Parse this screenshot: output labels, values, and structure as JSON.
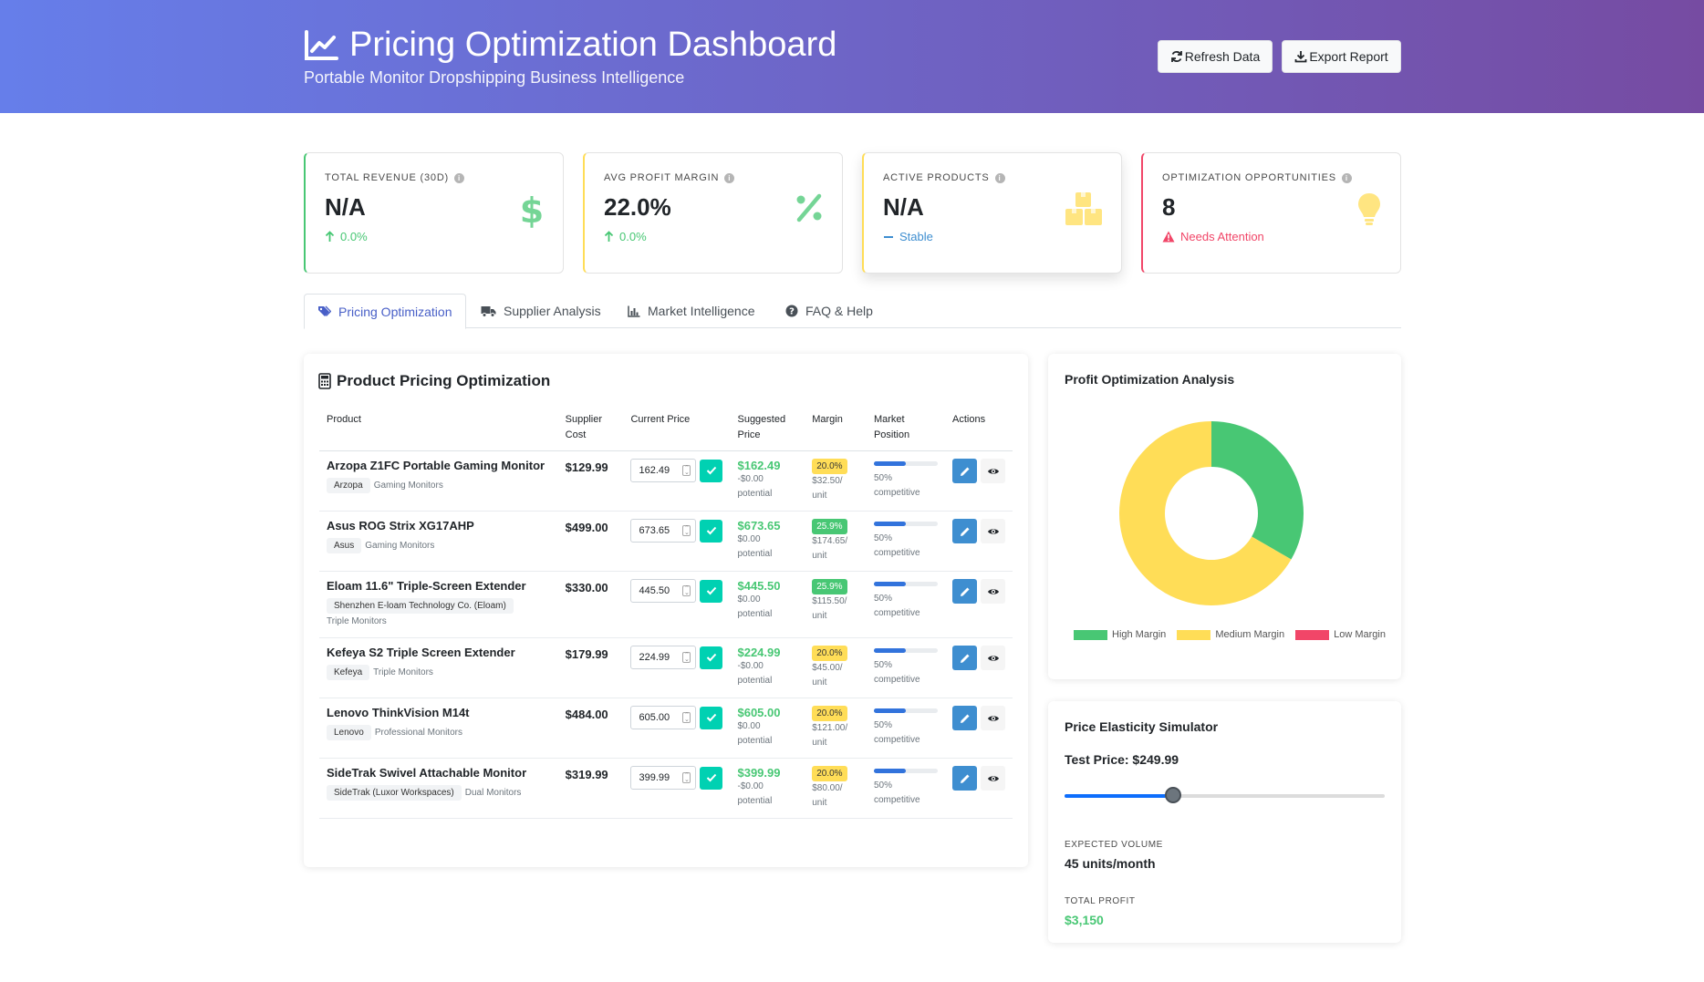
{
  "header": {
    "title": "Pricing Optimization Dashboard",
    "subtitle": "Portable Monitor Dropshipping Business Intelligence",
    "refresh_label": "Refresh Data",
    "export_label": "Export Report"
  },
  "kpis": [
    {
      "label": "TOTAL REVENUE (30D)",
      "value": "N/A",
      "trend": "0.0%",
      "trend_color": "#48c774",
      "accent": "#48c774",
      "icon": "dollar-icon"
    },
    {
      "label": "AVG PROFIT MARGIN",
      "value": "22.0%",
      "trend": "0.0%",
      "trend_color": "#48c774",
      "accent": "#ffdd57",
      "icon": "percent-icon"
    },
    {
      "label": "ACTIVE PRODUCTS",
      "value": "N/A",
      "trend": "Stable",
      "trend_color": "#3e8ed0",
      "accent": "#ffdd57",
      "icon": "boxes-icon"
    },
    {
      "label": "OPTIMIZATION OPPORTUNITIES",
      "value": "8",
      "trend": "Needs Attention",
      "trend_color": "#f14668",
      "accent": "#f14668",
      "icon": "lightbulb-icon"
    }
  ],
  "tabs": [
    {
      "label": "Pricing Optimization",
      "icon": "tags-icon",
      "active": true
    },
    {
      "label": "Supplier Analysis",
      "icon": "truck-icon",
      "active": false
    },
    {
      "label": "Market Intelligence",
      "icon": "chart-bar-icon",
      "active": false
    },
    {
      "label": "FAQ & Help",
      "icon": "question-circle-icon",
      "active": false
    }
  ],
  "table": {
    "title": "Product Pricing Optimization",
    "headers": {
      "product": "Product",
      "supplier_cost_1": "Supplier",
      "supplier_cost_2": "Cost",
      "current_price": "Current Price",
      "suggested_1": "Suggested",
      "suggested_2": "Price",
      "margin": "Margin",
      "market_1": "Market",
      "market_2": "Position",
      "actions": "Actions"
    },
    "rows": [
      {
        "name": "Arzopa Z1FC Portable Gaming Monitor",
        "brand": "Arzopa",
        "category": "Gaming Monitors",
        "cost": "$129.99",
        "current": "162.49",
        "suggested": "$162.49",
        "delta": "-$0.00",
        "potential": "potential",
        "margin": "20.0%",
        "margin_level": "medium",
        "per_unit": "$32.50/",
        "unit": "unit",
        "position": "50%",
        "position_label": "competitive",
        "position_fill": 0.5
      },
      {
        "name": "Asus ROG Strix XG17AHP",
        "brand": "Asus",
        "category": "Gaming Monitors",
        "cost": "$499.00",
        "current": "673.65",
        "suggested": "$673.65",
        "delta": "$0.00",
        "potential": "potential",
        "margin": "25.9%",
        "margin_level": "high",
        "per_unit": "$174.65/",
        "unit": "unit",
        "position": "50%",
        "position_label": "competitive",
        "position_fill": 0.5
      },
      {
        "name": "Eloam 11.6\" Triple-Screen Extender",
        "brand": "Shenzhen E-loam Technology Co. (Eloam)",
        "category": "Triple Monitors",
        "cost": "$330.00",
        "current": "445.50",
        "suggested": "$445.50",
        "delta": "$0.00",
        "potential": "potential",
        "margin": "25.9%",
        "margin_level": "high",
        "per_unit": "$115.50/",
        "unit": "unit",
        "position": "50%",
        "position_label": "competitive",
        "position_fill": 0.5
      },
      {
        "name": "Kefeya S2 Triple Screen Extender",
        "brand": "Kefeya",
        "category": "Triple Monitors",
        "cost": "$179.99",
        "current": "224.99",
        "suggested": "$224.99",
        "delta": "-$0.00",
        "potential": "potential",
        "margin": "20.0%",
        "margin_level": "medium",
        "per_unit": "$45.00/",
        "unit": "unit",
        "position": "50%",
        "position_label": "competitive",
        "position_fill": 0.5
      },
      {
        "name": "Lenovo ThinkVision M14t",
        "brand": "Lenovo",
        "category": "Professional Monitors",
        "cost": "$484.00",
        "current": "605.00",
        "suggested": "$605.00",
        "delta": "$0.00",
        "potential": "potential",
        "margin": "20.0%",
        "margin_level": "medium",
        "per_unit": "$121.00/",
        "unit": "unit",
        "position": "50%",
        "position_label": "competitive",
        "position_fill": 0.5
      },
      {
        "name": "SideTrak Swivel Attachable Monitor",
        "brand": "SideTrak (Luxor Workspaces)",
        "category": "Dual Monitors",
        "cost": "$319.99",
        "current": "399.99",
        "suggested": "$399.99",
        "delta": "-$0.00",
        "potential": "potential",
        "margin": "20.0%",
        "margin_level": "medium",
        "per_unit": "$80.00/",
        "unit": "unit",
        "position": "50%",
        "position_label": "competitive",
        "position_fill": 0.5
      }
    ]
  },
  "chart_data": {
    "type": "pie",
    "title": "Profit Optimization Analysis",
    "categories": [
      "High Margin",
      "Medium Margin",
      "Low Margin"
    ],
    "values": [
      2,
      4,
      0
    ],
    "colors": [
      "#48c774",
      "#ffdd57",
      "#f14668"
    ],
    "donut": true,
    "legend": "bottom"
  },
  "simulator": {
    "title": "Price Elasticity Simulator",
    "test_price": "Test Price: $249.99",
    "slider_fraction": 0.34,
    "volume_label": "EXPECTED VOLUME",
    "volume_value": "45 units/month",
    "profit_label": "TOTAL PROFIT",
    "profit_value": "$3,150",
    "profit_color": "#48c774"
  }
}
